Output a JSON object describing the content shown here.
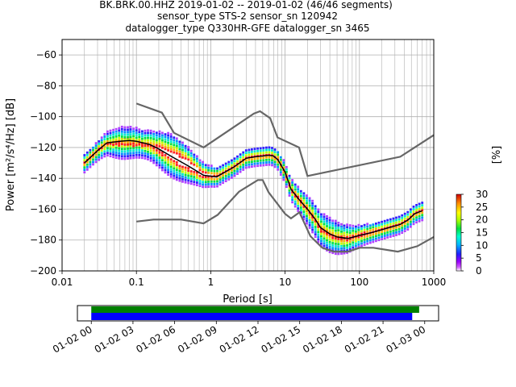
{
  "chart_data": {
    "type": "ppsd",
    "title": {
      "line1": "BK.BRK.00.HHZ   2019-01-02 -- 2019-01-02  (46/46 segments)",
      "line2": "sensor_type STS-2 sensor_sn 120942",
      "line3": "datalogger_type Q330HR-GFE datalogger_sn 3465"
    },
    "xlabel": "Period [s]",
    "ylabel": "Power [m²/s⁴/Hz] [dB]",
    "x_scale": "log",
    "xlim": [
      0.01,
      1000
    ],
    "ylim": [
      -200,
      -50
    ],
    "x_ticks": [
      {
        "value": 0.01,
        "label": "0.01"
      },
      {
        "value": 0.1,
        "label": "0.1"
      },
      {
        "value": 1,
        "label": "1"
      },
      {
        "value": 10,
        "label": "10"
      },
      {
        "value": 100,
        "label": "100"
      },
      {
        "value": 1000,
        "label": "1000"
      }
    ],
    "y_ticks": [
      {
        "value": -60,
        "label": "−60"
      },
      {
        "value": -80,
        "label": "−80"
      },
      {
        "value": -100,
        "label": "−100"
      },
      {
        "value": -120,
        "label": "−120"
      },
      {
        "value": -140,
        "label": "−140"
      },
      {
        "value": -160,
        "label": "−160"
      },
      {
        "value": -180,
        "label": "−180"
      },
      {
        "value": -200,
        "label": "−200"
      }
    ],
    "grid": true,
    "high_noise_model": [
      [
        0.1,
        -91.5
      ],
      [
        0.22,
        -97.4
      ],
      [
        0.32,
        -110.5
      ],
      [
        0.8,
        -120
      ],
      [
        3.8,
        -98
      ],
      [
        4.6,
        -96.5
      ],
      [
        6.3,
        -101
      ],
      [
        7.9,
        -113.5
      ],
      [
        15.4,
        -120
      ],
      [
        20,
        -138.5
      ],
      [
        354.8,
        -126
      ],
      [
        1000,
        -112
      ]
    ],
    "low_noise_model": [
      [
        0.1,
        -168
      ],
      [
        0.17,
        -166.7
      ],
      [
        0.4,
        -166.7
      ],
      [
        0.8,
        -169.2
      ],
      [
        1.24,
        -163.7
      ],
      [
        2.4,
        -148.6
      ],
      [
        4.3,
        -141.1
      ],
      [
        5,
        -141.1
      ],
      [
        6,
        -149
      ],
      [
        10,
        -163
      ],
      [
        12,
        -166
      ],
      [
        15.6,
        -162
      ],
      [
        21.9,
        -177.5
      ],
      [
        31.6,
        -185
      ],
      [
        45,
        -187.5
      ],
      [
        70,
        -187.5
      ],
      [
        101,
        -185
      ],
      [
        154,
        -185
      ],
      [
        328,
        -187.5
      ],
      [
        600,
        -184
      ],
      [
        1000,
        -178
      ]
    ],
    "median_curve": [
      [
        0.02,
        -130
      ],
      [
        0.03,
        -122
      ],
      [
        0.04,
        -117
      ],
      [
        0.06,
        -116
      ],
      [
        0.08,
        -115.5
      ],
      [
        0.1,
        -116
      ],
      [
        0.15,
        -118
      ],
      [
        0.2,
        -121
      ],
      [
        0.3,
        -126
      ],
      [
        0.5,
        -132
      ],
      [
        0.8,
        -138
      ],
      [
        1.2,
        -139
      ],
      [
        2,
        -133
      ],
      [
        3,
        -127
      ],
      [
        4,
        -126
      ],
      [
        5,
        -125.5
      ],
      [
        6,
        -125
      ],
      [
        7,
        -125.5
      ],
      [
        8,
        -128
      ],
      [
        10,
        -136
      ],
      [
        12,
        -147
      ],
      [
        15,
        -153
      ],
      [
        20,
        -160
      ],
      [
        25,
        -166
      ],
      [
        30,
        -172
      ],
      [
        40,
        -176
      ],
      [
        50,
        -178
      ],
      [
        70,
        -179
      ],
      [
        100,
        -177
      ],
      [
        150,
        -175
      ],
      [
        250,
        -172
      ],
      [
        350,
        -170
      ],
      [
        450,
        -167
      ],
      [
        550,
        -163
      ],
      [
        700,
        -161
      ]
    ],
    "colorbar": {
      "label": "[%]",
      "ticks": [
        {
          "value": 0,
          "label": "0"
        },
        {
          "value": 5,
          "label": "5"
        },
        {
          "value": 10,
          "label": "10"
        },
        {
          "value": 15,
          "label": "15"
        },
        {
          "value": 20,
          "label": "20"
        },
        {
          "value": 25,
          "label": "25"
        },
        {
          "value": 30,
          "label": "30"
        }
      ],
      "range": [
        0,
        30
      ]
    },
    "timeline": {
      "tick_labels": [
        "01-02 00",
        "01-02 03",
        "01-02 06",
        "01-02 09",
        "01-02 12",
        "01-02 15",
        "01-02 18",
        "01-02 21",
        "01-03 00"
      ],
      "range_hours": [
        -1,
        25
      ],
      "green_bar_hours": [
        0,
        23.6
      ],
      "blue_bar_hours": [
        0,
        23.1
      ],
      "colors": {
        "green": "#008000",
        "blue": "#0000ff"
      }
    }
  }
}
